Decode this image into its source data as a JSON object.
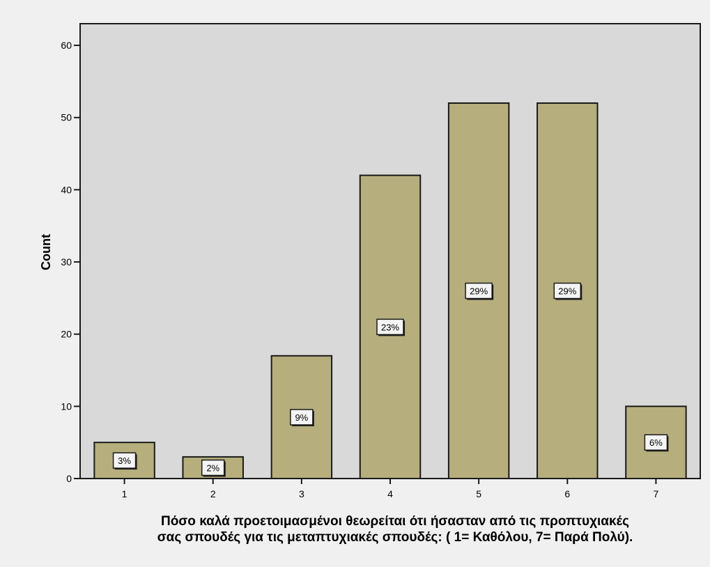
{
  "chart_data": {
    "type": "bar",
    "categories": [
      "1",
      "2",
      "3",
      "4",
      "5",
      "6",
      "7"
    ],
    "values": [
      5,
      3,
      17,
      42,
      52,
      52,
      10
    ],
    "percent_labels": [
      "3%",
      "2%",
      "9%",
      "23%",
      "29%",
      "29%",
      "6%"
    ],
    "yticks": [
      "0",
      "10",
      "20",
      "30",
      "40",
      "50",
      "60"
    ],
    "ylabel": "Count",
    "xlabel_lines": [
      "Πόσο καλά προετοιμασμένοι θεωρείται ότι ήσασταν από τις προπτυχιακές",
      "σας σπουδές για τις μεταπτυχιακές σπουδές: ( 1= Καθόλου, 7= Παρά Πολύ)."
    ],
    "ylim": [
      0,
      63
    ],
    "grid": false,
    "colors": {
      "bar_fill": "#b6ae7c",
      "bar_stroke": "#1a1a1a",
      "plot_bg": "#d9d9d9",
      "page_bg": "#f0f0f0",
      "label_box": "#f4f4f4"
    }
  }
}
